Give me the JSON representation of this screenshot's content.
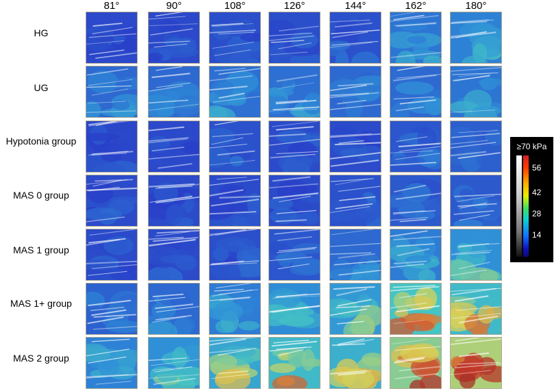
{
  "columns": [
    "81°",
    "90°",
    "108°",
    "126°",
    "144°",
    "162°",
    "180°"
  ],
  "rows": [
    "HG",
    "UG",
    "Hypotonia group",
    "MAS 0 group",
    "MAS 1 group",
    "MAS 1+ group",
    "MAS 2 group"
  ],
  "legend": {
    "title": "≥70 kPa",
    "ticks": [
      "56",
      "42",
      "28",
      "14"
    ]
  },
  "colors": {
    "low": "#2a3fc8",
    "mid_low": "#2f8fd8",
    "mid": "#45c4c4",
    "yellow": "#d8d45a",
    "orange": "#e0a040",
    "red": "#c83a2a",
    "dark_red": "#a83028"
  },
  "stiffness_levels": [
    [
      0.05,
      0.05,
      0.08,
      0.08,
      0.1,
      0.28,
      0.35
    ],
    [
      0.22,
      0.22,
      0.25,
      0.25,
      0.22,
      0.22,
      0.28
    ],
    [
      0.04,
      0.05,
      0.1,
      0.06,
      0.06,
      0.12,
      0.16
    ],
    [
      0.06,
      0.06,
      0.06,
      0.06,
      0.1,
      0.14,
      0.14
    ],
    [
      0.06,
      0.06,
      0.08,
      0.12,
      0.22,
      0.32,
      0.42
    ],
    [
      0.18,
      0.22,
      0.32,
      0.4,
      0.48,
      0.75,
      0.68
    ],
    [
      0.35,
      0.42,
      0.55,
      0.68,
      0.62,
      0.88,
      0.95
    ]
  ]
}
